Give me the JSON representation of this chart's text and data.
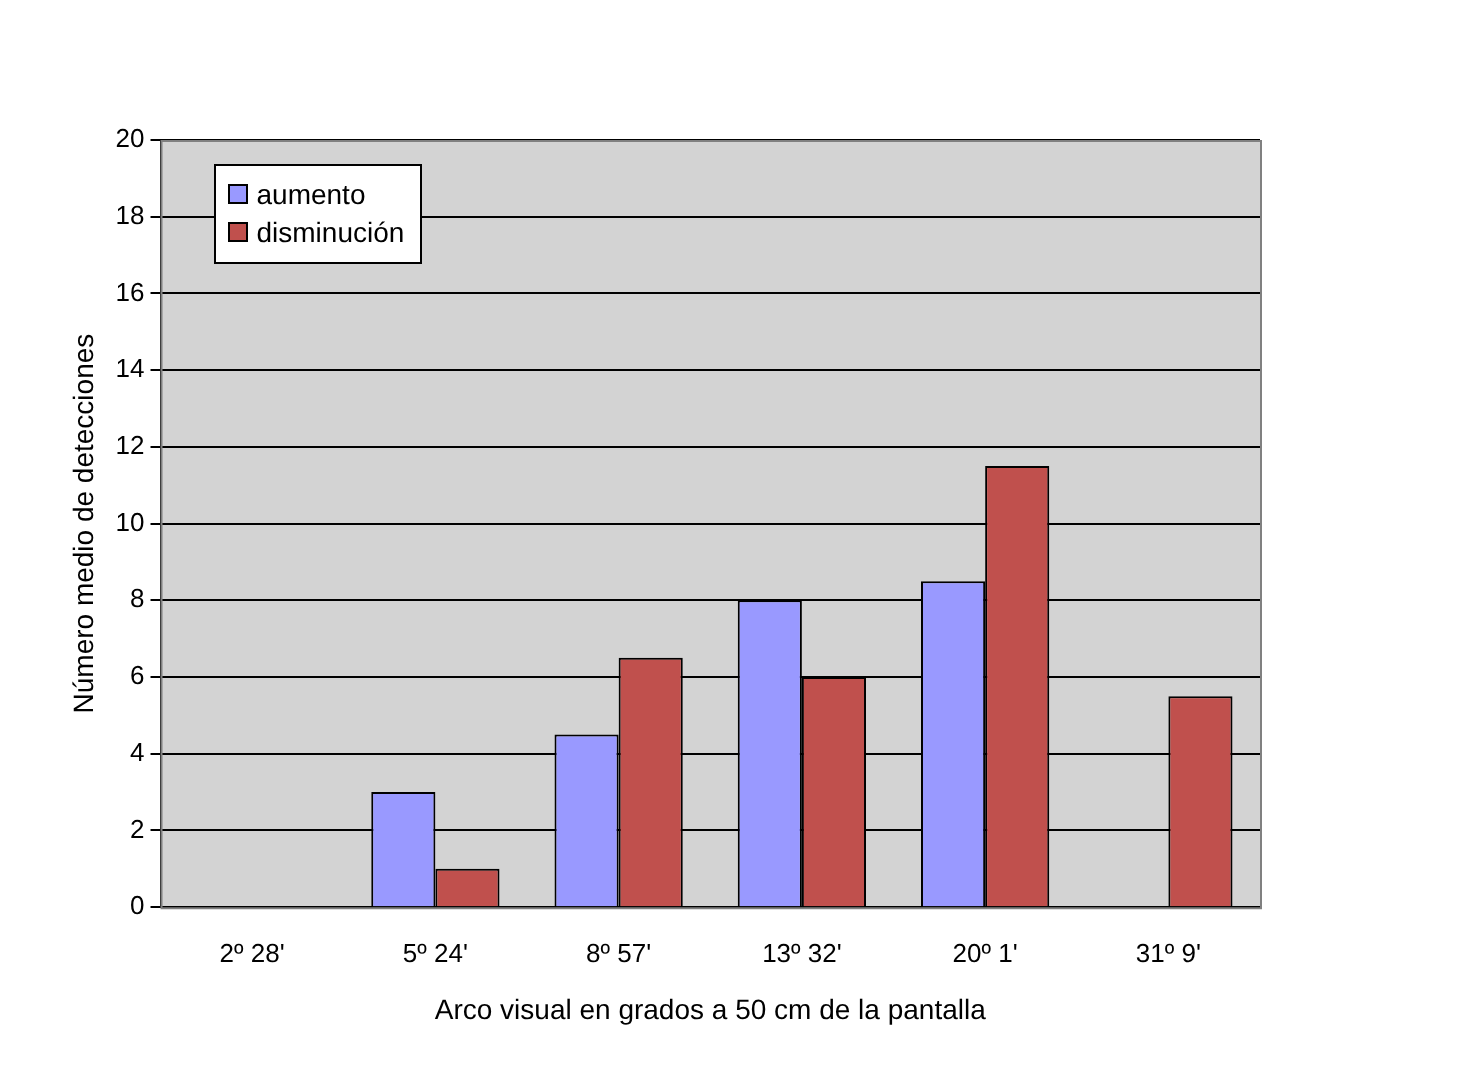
{
  "chart_data": {
    "type": "bar",
    "xlabel": "Arco visual en grados a 50 cm de la pantalla",
    "ylabel": "Número medio de detecciones",
    "categories": [
      "2º 28'",
      "5º 24'",
      "8º 57'",
      "13º 32'",
      "20º 1'",
      "31º 9'"
    ],
    "series": [
      {
        "name": "aumento",
        "color": "#9999ff",
        "values": [
          0,
          3,
          4.5,
          8,
          8.5,
          0
        ]
      },
      {
        "name": "disminución",
        "color": "#c0504d",
        "values": [
          0,
          1,
          6.5,
          6,
          11.5,
          5.5
        ]
      }
    ],
    "ylim": [
      0,
      20
    ],
    "yticks": [
      0,
      2,
      4,
      6,
      8,
      10,
      12,
      14,
      16,
      18,
      20
    ],
    "grid": "y",
    "legend": "top left"
  }
}
